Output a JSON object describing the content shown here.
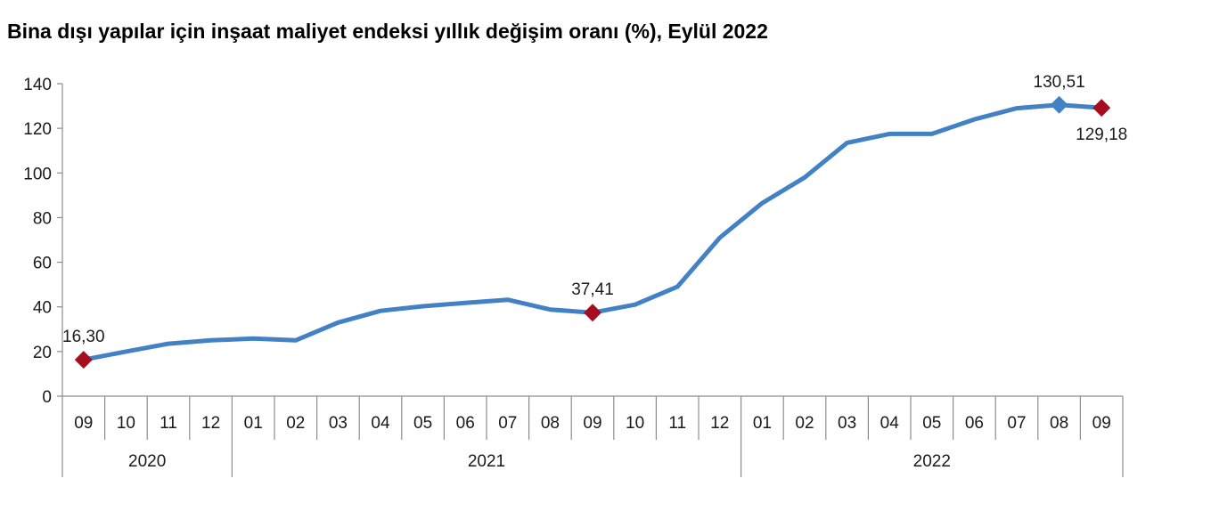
{
  "chart_data": {
    "type": "line",
    "title": "Bina dışı yapılar için inşaat maliyet endeksi yıllık değişim oranı (%), Eylül 2022",
    "xlabel": "",
    "ylabel": "",
    "ylim": [
      0,
      140
    ],
    "yticks": [
      "0",
      "20",
      "40",
      "60",
      "80",
      "100",
      "120",
      "140"
    ],
    "categories": [
      "09",
      "10",
      "11",
      "12",
      "01",
      "02",
      "03",
      "04",
      "05",
      "06",
      "07",
      "08",
      "09",
      "10",
      "11",
      "12",
      "01",
      "02",
      "03",
      "04",
      "05",
      "06",
      "07",
      "08",
      "09"
    ],
    "years": [
      {
        "label": "2020",
        "start": 0,
        "end": 3
      },
      {
        "label": "2021",
        "start": 4,
        "end": 15
      },
      {
        "label": "2022",
        "start": 16,
        "end": 24
      }
    ],
    "series": [
      {
        "values": [
          16.3,
          20.0,
          23.5,
          25.0,
          25.8,
          25.0,
          33.0,
          38.2,
          40.3,
          41.8,
          43.2,
          38.8,
          37.41,
          41.0,
          49.0,
          71.0,
          86.5,
          98.0,
          113.5,
          117.5,
          117.5,
          124.0,
          129.0,
          130.51,
          129.18
        ],
        "color": "#4282c4"
      }
    ],
    "markers": [
      {
        "index": 0,
        "label": "16,30",
        "color": "#a50e1e",
        "label_pos": "above"
      },
      {
        "index": 12,
        "label": "37,41",
        "color": "#a50e1e",
        "label_pos": "above"
      },
      {
        "index": 23,
        "label": "130,51",
        "color": "#4282c4",
        "label_pos": "above"
      },
      {
        "index": 24,
        "label": "129,18",
        "color": "#a50e1e",
        "label_pos": "below"
      }
    ],
    "grid": false,
    "legend": "none"
  }
}
